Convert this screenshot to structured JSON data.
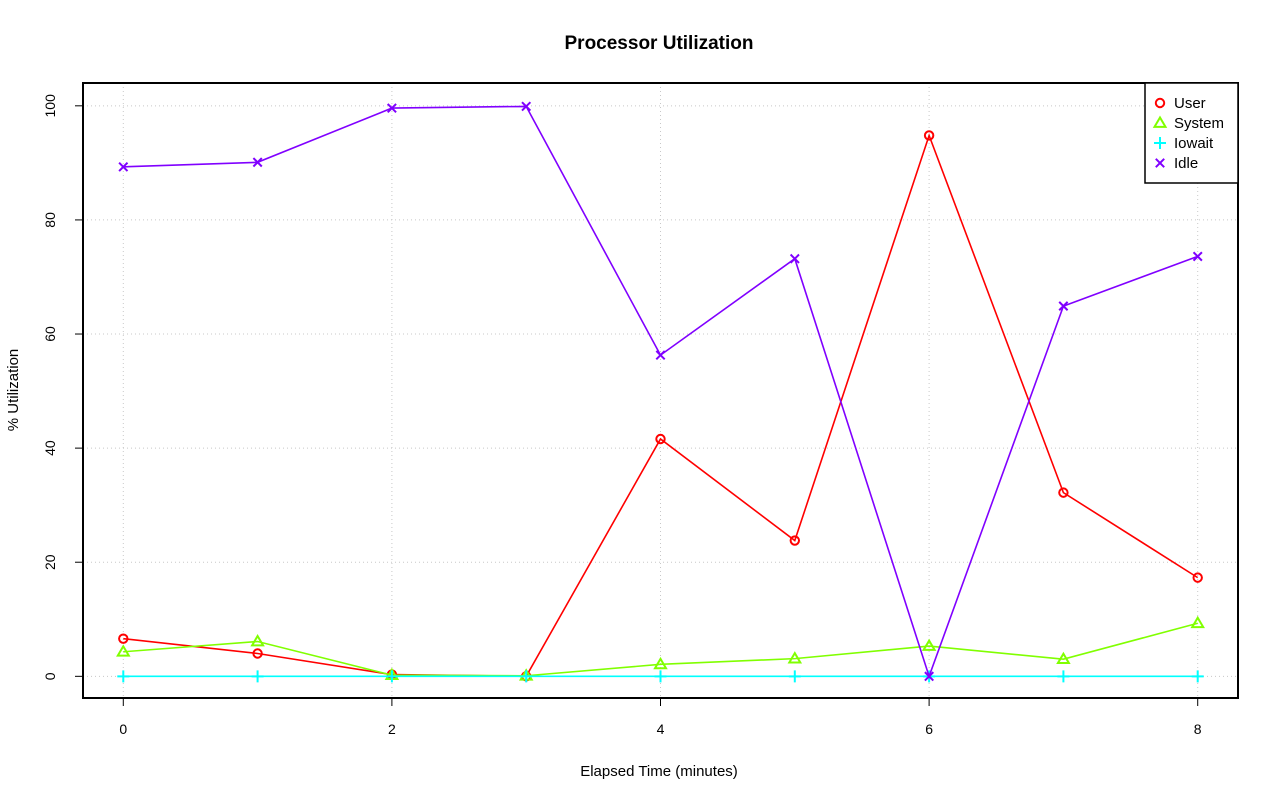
{
  "chart_data": {
    "type": "line",
    "title": "Processor Utilization",
    "xlabel": "Elapsed Time (minutes)",
    "ylabel": "% Utilization",
    "x": [
      0,
      1,
      2,
      3,
      4,
      5,
      6,
      7,
      8
    ],
    "xlim": [
      -0.3,
      8.3
    ],
    "ylim": [
      -3.8,
      104
    ],
    "xticks": [
      0,
      2,
      4,
      6,
      8
    ],
    "yticks": [
      0,
      20,
      40,
      60,
      80,
      100
    ],
    "grid": true,
    "legend_position": "top-right",
    "series": [
      {
        "name": "User",
        "color": "#ff0000",
        "marker": "circle",
        "values": [
          6.6,
          4.0,
          0.3,
          0.0,
          41.6,
          23.8,
          94.8,
          32.2,
          17.3
        ]
      },
      {
        "name": "System",
        "color": "#80ff00",
        "marker": "triangle",
        "values": [
          4.3,
          6.1,
          0.2,
          0.1,
          2.1,
          3.1,
          5.3,
          3.0,
          9.3
        ]
      },
      {
        "name": "Iowait",
        "color": "#00ffff",
        "marker": "plus",
        "values": [
          0,
          0,
          0,
          0,
          0,
          0,
          0,
          0,
          0
        ]
      },
      {
        "name": "Idle",
        "color": "#8000ff",
        "marker": "cross",
        "values": [
          89.3,
          90.1,
          99.6,
          99.9,
          56.3,
          73.2,
          0.0,
          64.9,
          73.6
        ]
      }
    ]
  }
}
